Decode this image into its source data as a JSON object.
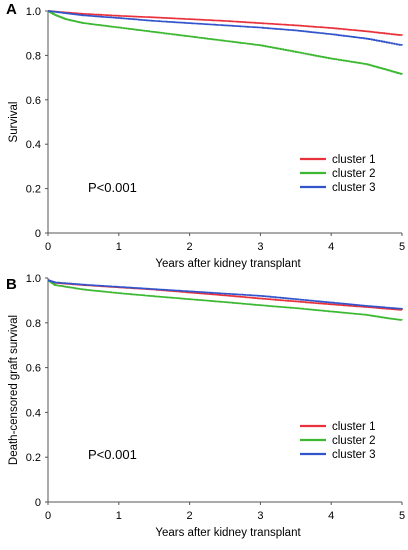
{
  "colors": {
    "cluster1": "#e8313b",
    "cluster2": "#3cb832",
    "cluster3": "#3355cc",
    "axis": "#555555"
  },
  "chart_data": [
    {
      "type": "line",
      "panel_label": "A",
      "title": "",
      "xlabel": "Years after kidney transplant",
      "ylabel": "Survival",
      "xlim": [
        0,
        5
      ],
      "ylim": [
        0,
        1.0
      ],
      "xticks": [
        0,
        1,
        2,
        3,
        4,
        5
      ],
      "yticks": [
        0,
        0.2,
        0.4,
        0.6,
        0.8,
        1.0
      ],
      "ytick_labels": [
        "0",
        "0.2",
        "0.4",
        "0.6",
        "0.8",
        "1.0"
      ],
      "grid": false,
      "legend_position": "right",
      "annotation": "P<0.001",
      "series": [
        {
          "name": "cluster 1",
          "color_key": "cluster1",
          "x": [
            0,
            0.25,
            0.5,
            1,
            1.5,
            2,
            2.5,
            3,
            3.5,
            4,
            4.5,
            5
          ],
          "y": [
            1.0,
            0.993,
            0.987,
            0.978,
            0.971,
            0.963,
            0.955,
            0.945,
            0.935,
            0.923,
            0.908,
            0.89
          ]
        },
        {
          "name": "cluster 2",
          "color_key": "cluster2",
          "x": [
            0,
            0.1,
            0.25,
            0.5,
            1,
            1.5,
            2,
            2.5,
            3,
            3.5,
            4,
            4.5,
            4.75,
            5
          ],
          "y": [
            1.0,
            0.982,
            0.963,
            0.945,
            0.925,
            0.905,
            0.885,
            0.865,
            0.845,
            0.815,
            0.785,
            0.76,
            0.738,
            0.715
          ]
        },
        {
          "name": "cluster 3",
          "color_key": "cluster3",
          "x": [
            0,
            0.25,
            0.5,
            1,
            1.5,
            2,
            2.5,
            3,
            3.5,
            4,
            4.5,
            5
          ],
          "y": [
            1.0,
            0.99,
            0.98,
            0.968,
            0.955,
            0.945,
            0.935,
            0.925,
            0.912,
            0.895,
            0.875,
            0.845
          ]
        }
      ]
    },
    {
      "type": "line",
      "panel_label": "B",
      "title": "",
      "xlabel": "Years after kidney transplant",
      "ylabel": "Death-censored graft survival",
      "xlim": [
        0,
        5
      ],
      "ylim": [
        0,
        1.0
      ],
      "xticks": [
        0,
        1,
        2,
        3,
        4,
        5
      ],
      "yticks": [
        0,
        0.2,
        0.4,
        0.6,
        0.8,
        1.0
      ],
      "ytick_labels": [
        "0",
        "0.2",
        "0.4",
        "0.6",
        "0.8",
        "1.0"
      ],
      "grid": false,
      "legend_position": "right",
      "annotation": "P<0.001",
      "series": [
        {
          "name": "cluster 1",
          "color_key": "cluster1",
          "x": [
            0,
            0.1,
            0.5,
            1,
            1.5,
            2,
            2.5,
            3,
            3.5,
            4,
            4.5,
            5
          ],
          "y": [
            0.99,
            0.978,
            0.968,
            0.958,
            0.948,
            0.935,
            0.922,
            0.908,
            0.895,
            0.882,
            0.87,
            0.857
          ]
        },
        {
          "name": "cluster 2",
          "color_key": "cluster2",
          "x": [
            0,
            0.1,
            0.5,
            1,
            1.5,
            2,
            2.5,
            3,
            3.5,
            4,
            4.5,
            4.8,
            5
          ],
          "y": [
            0.99,
            0.968,
            0.948,
            0.932,
            0.918,
            0.905,
            0.892,
            0.878,
            0.865,
            0.85,
            0.835,
            0.82,
            0.812
          ]
        },
        {
          "name": "cluster 3",
          "color_key": "cluster3",
          "x": [
            0,
            0.1,
            0.5,
            1,
            1.5,
            2,
            2.5,
            3,
            3.5,
            4,
            4.5,
            5
          ],
          "y": [
            0.99,
            0.98,
            0.97,
            0.96,
            0.95,
            0.94,
            0.93,
            0.92,
            0.905,
            0.89,
            0.875,
            0.862
          ]
        }
      ]
    }
  ]
}
